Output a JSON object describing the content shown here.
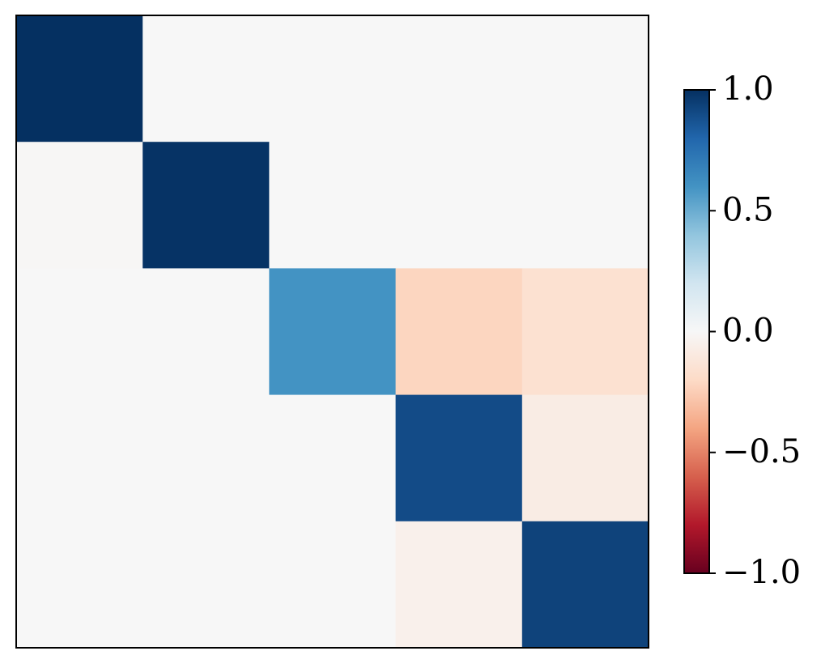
{
  "chart_data": {
    "type": "heatmap",
    "colormap": "RdBu",
    "values": [
      [
        1.0,
        0.0,
        0.0,
        0.0,
        0.0
      ],
      [
        -0.01,
        0.99,
        0.0,
        0.0,
        0.0
      ],
      [
        0.0,
        0.0,
        0.6,
        -0.22,
        -0.16
      ],
      [
        0.0,
        0.0,
        0.0,
        0.9,
        -0.08
      ],
      [
        0.0,
        0.0,
        0.0,
        -0.05,
        0.93
      ]
    ],
    "clim": [
      -1.0,
      1.0
    ],
    "cticks": [
      {
        "value": -1.0,
        "label": "−1.0"
      },
      {
        "value": -0.5,
        "label": "−0.5"
      },
      {
        "value": 0.0,
        "label": "0.0"
      },
      {
        "value": 0.5,
        "label": "0.5"
      },
      {
        "value": 1.0,
        "label": "1.0"
      }
    ]
  }
}
